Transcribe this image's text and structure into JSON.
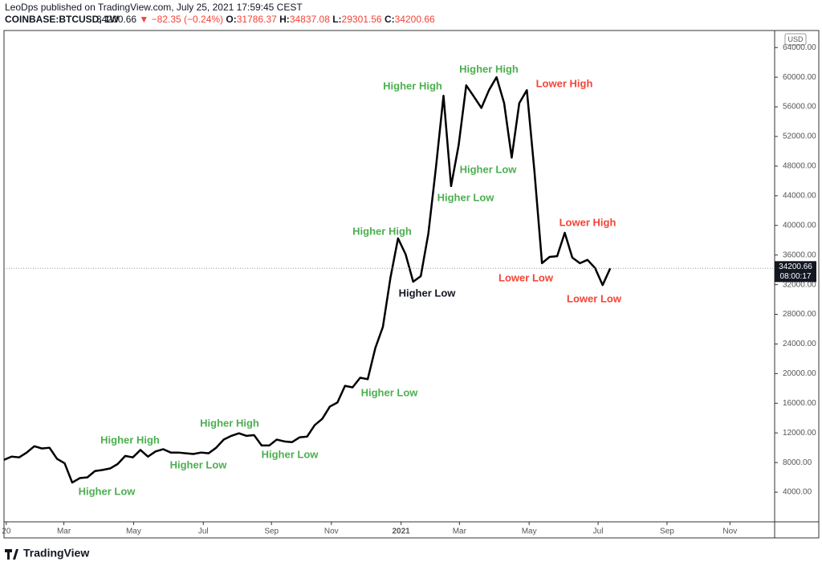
{
  "chart_data": {
    "type": "line",
    "publisher": "LeoDps published on TradingView.com, July 25, 2021 17:59:45 CEST",
    "symbol": "COINBASE:BTCUSD, 1W",
    "quote": [
      "34200.66",
      "▼",
      "−82.35 (−0.24%)",
      "O:",
      "31786.37",
      "H:",
      "34837.08",
      "L:",
      "29301.56",
      "C:",
      "34200.66"
    ],
    "currency": "USD",
    "countdown": "08:00:17",
    "brand": "TradingView",
    "x": [
      0,
      1,
      2,
      3,
      4,
      5,
      6,
      7,
      8,
      9,
      10,
      11,
      12,
      13,
      14,
      15,
      16,
      17,
      18,
      19,
      20,
      21,
      22,
      23,
      24,
      25,
      26,
      27,
      28,
      29,
      30,
      31,
      32,
      33,
      34,
      35,
      36,
      37,
      38,
      39,
      40,
      41,
      42,
      43,
      44,
      45,
      46,
      47,
      48,
      49,
      50,
      51,
      52,
      53,
      54,
      55,
      56,
      57,
      58,
      59,
      60,
      61,
      62,
      63,
      64,
      65,
      66,
      67,
      68,
      69,
      70,
      71,
      72,
      73,
      74,
      75,
      76,
      77,
      78,
      79,
      80
    ],
    "series": [
      {
        "name": "BTCUSD",
        "color": "#000000",
        "values": [
          8370,
          8800,
          8700,
          9350,
          10200,
          9900,
          10000,
          8500,
          7900,
          5300,
          5900,
          6000,
          6850,
          7000,
          7200,
          7800,
          8900,
          8700,
          9700,
          8800,
          9500,
          9800,
          9350,
          9350,
          9250,
          9150,
          9350,
          9250,
          10000,
          11100,
          11600,
          11950,
          11600,
          11700,
          10300,
          10300,
          11100,
          10850,
          10750,
          11400,
          11500,
          13050,
          13900,
          15550,
          16100,
          18350,
          18150,
          19450,
          19250,
          23450,
          26300,
          32950,
          38250,
          36100,
          32400,
          33150,
          38900,
          47800,
          57500,
          45300,
          50850,
          58900,
          57400,
          55850,
          58250,
          60000,
          56500,
          49150,
          56500,
          58250,
          47300,
          34900,
          35750,
          35850,
          39000,
          35650,
          34900,
          35350,
          34250,
          31950,
          34200.66
        ]
      }
    ],
    "xlim": [
      0,
      101.7
    ],
    "xticks": [
      {
        "value": 0.3,
        "label": "20"
      },
      {
        "value": 7.9,
        "label": "Mar"
      },
      {
        "value": 17.1,
        "label": "May"
      },
      {
        "value": 26.3,
        "label": "Jul"
      },
      {
        "value": 35.3,
        "label": "Sep"
      },
      {
        "value": 43.2,
        "label": "Nov"
      },
      {
        "value": 52.4,
        "label": "2021"
      },
      {
        "value": 60.1,
        "label": "Mar"
      },
      {
        "value": 69.3,
        "label": "May"
      },
      {
        "value": 78.4,
        "label": "Jul"
      },
      {
        "value": 87.5,
        "label": "Sep"
      },
      {
        "value": 95.8,
        "label": "Nov"
      }
    ],
    "ylim": [
      0,
      66300
    ],
    "yticks": [
      {
        "value": 4000,
        "label": "4000.00"
      },
      {
        "value": 8000,
        "label": "8000.00"
      },
      {
        "value": 12000,
        "label": "12000.00"
      },
      {
        "value": 16000,
        "label": "16000.00"
      },
      {
        "value": 20000,
        "label": "20000.00"
      },
      {
        "value": 24000,
        "label": "24000.00"
      },
      {
        "value": 28000,
        "label": "28000.00"
      },
      {
        "value": 32000,
        "label": "32000.00"
      },
      {
        "value": 36000,
        "label": "36000.00"
      },
      {
        "value": 40000,
        "label": "40000.00"
      },
      {
        "value": 44000,
        "label": "44000.00"
      },
      {
        "value": 48000,
        "label": "48000.00"
      },
      {
        "value": 52000,
        "label": "52000.00"
      },
      {
        "value": 56000,
        "label": "56000.00"
      },
      {
        "value": 60000,
        "label": "60000.00"
      },
      {
        "value": 64000,
        "label": "64000.00"
      }
    ],
    "grid": false,
    "annotations": [
      {
        "text": "Higher Low",
        "color": "#4caf50"
      },
      {
        "text": "Higher High",
        "color": "#4caf50"
      },
      {
        "text": "Higher Low",
        "color": "#4caf50"
      },
      {
        "text": "Higher High",
        "color": "#4caf50"
      },
      {
        "text": "Higher Low",
        "color": "#4caf50"
      },
      {
        "text": "Higher Low",
        "color": "#4caf50"
      },
      {
        "text": "Higher High",
        "color": "#4caf50"
      },
      {
        "text": "Higher Low",
        "color": "#131722"
      },
      {
        "text": "Higher High",
        "color": "#4caf50"
      },
      {
        "text": "Higher Low",
        "color": "#4caf50"
      },
      {
        "text": "Higher Low",
        "color": "#4caf50"
      },
      {
        "text": "Higher High",
        "color": "#4caf50"
      },
      {
        "text": "Lower High",
        "color": "#f44336"
      },
      {
        "text": "Lower High",
        "color": "#f44336"
      },
      {
        "text": "Lower Low",
        "color": "#f44336"
      },
      {
        "text": "Lower Low",
        "color": "#f44336"
      }
    ]
  }
}
